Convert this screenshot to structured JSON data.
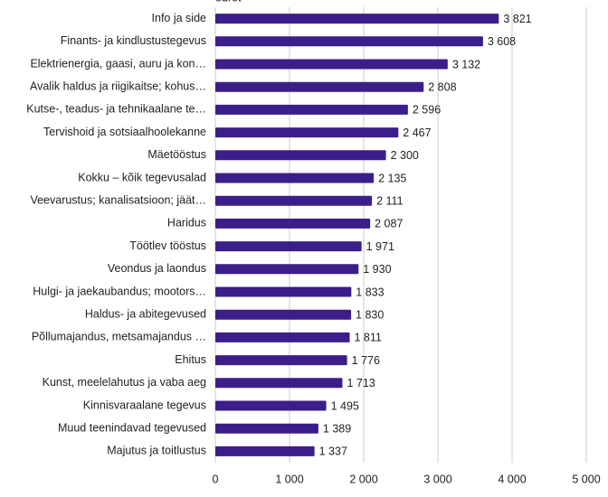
{
  "chart_data": {
    "type": "hbar",
    "axis_label": "eurot",
    "categories": [
      "Info ja side",
      "Finants- ja kindlustustegevus",
      "Elektrienergia, gaasi, auru ja kon…",
      "Avalik haldus ja riigikaitse; kohus…",
      "Kutse-, teadus- ja tehnikaalane te…",
      "Tervishoid ja sotsiaalhoolekanne",
      "Mäetööstus",
      "Kokku – kõik tegevusalad",
      "Veevarustus; kanalisatsioon; jäät…",
      "Haridus",
      "Töötlev tööstus",
      "Veondus ja laondus",
      "Hulgi- ja jaekaubandus; mootors…",
      "Haldus- ja abitegevused",
      "Põllumajandus, metsamajandus …",
      "Ehitus",
      "Kunst, meelelahutus ja vaba aeg",
      "Kinnisvaraalane tegevus",
      "Muud teenindavad tegevused",
      "Majutus ja toitlustus"
    ],
    "values": [
      3821,
      3608,
      3132,
      2808,
      2596,
      2467,
      2300,
      2135,
      2111,
      2087,
      1971,
      1930,
      1833,
      1830,
      1811,
      1776,
      1713,
      1495,
      1389,
      1337
    ],
    "value_labels": [
      "3 821",
      "3 608",
      "3 132",
      "2 808",
      "2 596",
      "2 467",
      "2 300",
      "2 135",
      "2 111",
      "2 087",
      "1 971",
      "1 930",
      "1 833",
      "1 830",
      "1 811",
      "1 776",
      "1 713",
      "1 495",
      "1 389",
      "1 337"
    ],
    "color": "#3c1e8a",
    "xlim": [
      0,
      5000
    ],
    "xticks": [
      0,
      {
        "value": 1000,
        "label": "1 000"
      },
      {
        "value": 2000,
        "label": "2 000"
      },
      {
        "value": 3000,
        "label": "3 000"
      },
      {
        "value": 4000,
        "label": "4 000"
      },
      {
        "value": 5000,
        "label": "5 000"
      }
    ],
    "grid": true
  }
}
